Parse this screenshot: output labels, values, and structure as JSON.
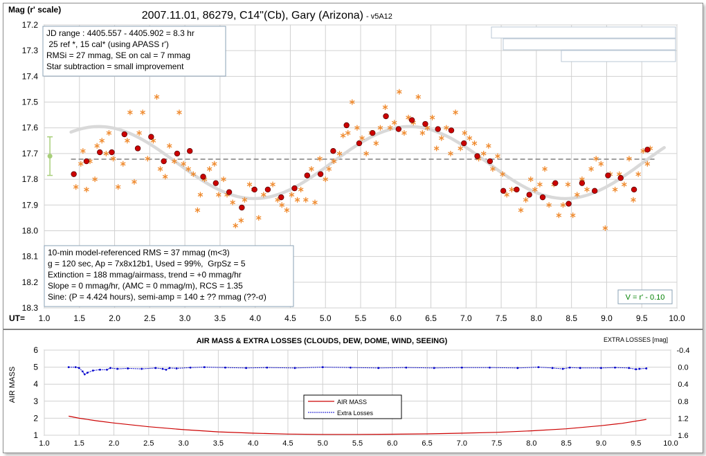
{
  "chart_data": [
    {
      "type": "scatter",
      "title": "2007.11.01, 86279, C14\"(Cb), Gary (Arizona)",
      "title_suffix": "- v5A12",
      "ylabel": "Mag (r' scale)",
      "xlabel": "UT=",
      "xlim": [
        1.0,
        10.0
      ],
      "ylim": [
        17.2,
        18.3
      ],
      "y_inverted": true,
      "grid": true,
      "x_ticks": [
        "1.0",
        "1.5",
        "2.0",
        "2.5",
        "3.0",
        "3.5",
        "4.0",
        "4.5",
        "5.0",
        "5.5",
        "6.0",
        "6.5",
        "7.0",
        "7.5",
        "8.0",
        "8.5",
        "9.0",
        "9.5",
        "10.0"
      ],
      "y_ticks": [
        "17.2",
        "17.3",
        "17.4",
        "17.5",
        "17.6",
        "17.7",
        "17.8",
        "17.9",
        "18.0",
        "18.1",
        "18.2",
        "18.3"
      ],
      "info_top": [
        "JD range : 4405.557 - 4405.902 = 8.3 hr",
        " 25 ref *, 15 cal* (using APASS r')",
        "RMSi = 27 mmag, SE on cal = 7 mmag",
        "Star subtraction = small improvement"
      ],
      "info_bottom": [
        "10-min model-referenced RMS = 37 mmag (m<3)",
        "g = 120 sec, Ap = 7x8x12b1, Used = 99%,  GrpSz = 5",
        "Extinction = 188 mmag/airmass, trend = +0 mmag/hr",
        "Slope = 0 mmag/hr, (AMC = 0 mmag/m), RCS = 1.35",
        "Sine: (P = 4.424 hours), semi-amp = 140 ± ?? mmag (??-σ)"
      ],
      "v_label": "V = r' - 0.10",
      "mean_mag": 17.722,
      "error_bar": {
        "x": 1.08,
        "y": 17.71,
        "low": 17.635,
        "high": 17.785
      },
      "model": {
        "mean": 17.735,
        "semi_amp": 0.14,
        "period_hr": 4.424,
        "phase_hr": 6.2
      },
      "binned": {
        "x": [
          1.42,
          1.6,
          1.79,
          1.96,
          2.14,
          2.33,
          2.52,
          2.7,
          2.89,
          3.07,
          3.26,
          3.44,
          3.63,
          3.81,
          3.99,
          4.18,
          4.37,
          4.56,
          4.74,
          4.93,
          5.11,
          5.3,
          5.48,
          5.67,
          5.86,
          6.04,
          6.23,
          6.42,
          6.6,
          6.79,
          6.97,
          7.16,
          7.34,
          7.53,
          7.72,
          7.9,
          8.09,
          8.27,
          8.46,
          8.65,
          8.83,
          9.02,
          9.2,
          9.39,
          9.58
        ],
        "y": [
          17.78,
          17.73,
          17.695,
          17.695,
          17.625,
          17.68,
          17.635,
          17.73,
          17.7,
          17.69,
          17.79,
          17.815,
          17.85,
          17.91,
          17.84,
          17.84,
          17.87,
          17.835,
          17.785,
          17.78,
          17.69,
          17.59,
          17.66,
          17.62,
          17.555,
          17.605,
          17.57,
          17.585,
          17.605,
          17.61,
          17.66,
          17.71,
          17.73,
          17.845,
          17.84,
          17.86,
          17.87,
          17.815,
          17.895,
          17.815,
          17.845,
          17.785,
          17.795,
          17.84,
          17.685
        ]
      },
      "points": {
        "x": [
          1.45,
          1.52,
          1.55,
          1.6,
          1.65,
          1.72,
          1.75,
          1.82,
          1.88,
          1.92,
          1.98,
          2.05,
          2.12,
          2.18,
          2.22,
          2.28,
          2.35,
          2.4,
          2.47,
          2.55,
          2.6,
          2.65,
          2.72,
          2.78,
          2.85,
          2.92,
          2.98,
          3.05,
          3.12,
          3.18,
          3.22,
          3.28,
          3.35,
          3.42,
          3.48,
          3.55,
          3.6,
          3.68,
          3.72,
          3.8,
          3.85,
          3.92,
          3.98,
          4.05,
          4.12,
          4.18,
          4.25,
          4.32,
          4.38,
          4.45,
          4.52,
          4.6,
          4.65,
          4.72,
          4.8,
          4.85,
          4.92,
          5.0,
          5.05,
          5.12,
          5.2,
          5.25,
          5.32,
          5.38,
          5.45,
          5.52,
          5.58,
          5.65,
          5.72,
          5.78,
          5.85,
          5.92,
          5.98,
          6.05,
          6.12,
          6.18,
          6.25,
          6.32,
          6.38,
          6.45,
          6.52,
          6.58,
          6.65,
          6.72,
          6.78,
          6.85,
          6.92,
          6.98,
          7.05,
          7.12,
          7.18,
          7.25,
          7.32,
          7.38,
          7.45,
          7.52,
          7.58,
          7.65,
          7.72,
          7.78,
          7.85,
          7.92,
          7.98,
          8.05,
          8.12,
          8.18,
          8.25,
          8.32,
          8.38,
          8.45,
          8.52,
          8.58,
          8.65,
          8.72,
          8.78,
          8.85,
          8.92,
          8.98,
          9.05,
          9.12,
          9.18,
          9.25,
          9.32,
          9.38,
          9.45,
          9.52,
          9.58,
          9.62
        ],
        "y": [
          17.83,
          17.74,
          17.69,
          17.84,
          17.73,
          17.8,
          17.67,
          17.65,
          17.7,
          17.62,
          17.72,
          17.83,
          17.74,
          17.65,
          17.54,
          17.81,
          17.62,
          17.54,
          17.72,
          17.65,
          17.48,
          17.76,
          17.79,
          17.67,
          17.73,
          17.54,
          17.74,
          17.76,
          17.78,
          17.92,
          17.86,
          17.8,
          17.76,
          17.74,
          17.86,
          17.8,
          17.86,
          17.89,
          17.98,
          17.96,
          17.88,
          17.82,
          17.84,
          17.95,
          17.86,
          17.84,
          17.82,
          17.88,
          17.9,
          17.92,
          17.86,
          17.88,
          17.84,
          17.88,
          17.76,
          17.89,
          17.72,
          17.8,
          17.76,
          17.73,
          17.7,
          17.63,
          17.62,
          17.5,
          17.6,
          17.64,
          17.7,
          17.62,
          17.66,
          17.6,
          17.52,
          17.6,
          17.58,
          17.46,
          17.62,
          17.56,
          17.58,
          17.48,
          17.62,
          17.6,
          17.56,
          17.68,
          17.64,
          17.6,
          17.7,
          17.54,
          17.68,
          17.62,
          17.64,
          17.66,
          17.72,
          17.7,
          17.67,
          17.76,
          17.71,
          17.78,
          17.86,
          17.84,
          17.84,
          17.92,
          17.88,
          17.8,
          17.84,
          17.82,
          17.76,
          17.9,
          17.82,
          17.94,
          17.9,
          17.82,
          17.94,
          17.86,
          17.8,
          17.84,
          17.76,
          17.72,
          17.74,
          17.99,
          17.78,
          17.84,
          17.78,
          17.82,
          17.72,
          17.88,
          17.78,
          17.69,
          17.74,
          17.68
        ],
        "count": 128
      }
    },
    {
      "type": "line",
      "title": "AIR MASS & EXTRA LOSSES (CLOUDS, DEW, DOME, WIND, SEEING)",
      "ylabel": "AIR MASS",
      "y2label": "EXTRA LOSSES [mag]",
      "xlim": [
        1.0,
        10.0
      ],
      "ylim": [
        1,
        6
      ],
      "y2lim": [
        -0.4,
        1.6
      ],
      "x_ticks": [
        "1.0",
        "1.5",
        "2.0",
        "2.5",
        "3.0",
        "3.5",
        "4.0",
        "4.5",
        "5.0",
        "5.5",
        "6.0",
        "6.5",
        "7.0",
        "7.5",
        "8.0",
        "8.5",
        "9.0",
        "9.5",
        "10.0"
      ],
      "y_ticks": [
        "1",
        "2",
        "3",
        "4",
        "5",
        "6"
      ],
      "y2_ticks": [
        "-0.4",
        "0.0",
        "0.4",
        "0.8",
        "1.2",
        "1.6"
      ],
      "series": [
        {
          "name": "AIR MASS",
          "color": "#cc0000",
          "x": [
            1.35,
            1.5,
            1.75,
            2.0,
            2.5,
            3.0,
            3.5,
            4.0,
            4.5,
            5.0,
            5.5,
            6.0,
            6.5,
            7.0,
            7.5,
            8.0,
            8.5,
            9.0,
            9.3,
            9.65
          ],
          "y": [
            2.12,
            2.0,
            1.85,
            1.72,
            1.5,
            1.33,
            1.2,
            1.12,
            1.07,
            1.05,
            1.05,
            1.06,
            1.08,
            1.12,
            1.17,
            1.26,
            1.38,
            1.56,
            1.7,
            1.93
          ]
        },
        {
          "name": "Extra Losses",
          "color": "#0000cc",
          "x": [
            1.35,
            1.45,
            1.5,
            1.55,
            1.58,
            1.62,
            1.7,
            1.8,
            1.9,
            1.95,
            2.05,
            2.2,
            2.4,
            2.6,
            2.7,
            2.75,
            2.8,
            2.9,
            3.1,
            3.3,
            3.6,
            3.9,
            4.2,
            4.6,
            5.0,
            5.4,
            5.8,
            6.2,
            6.6,
            7.0,
            7.4,
            7.8,
            8.1,
            8.3,
            8.45,
            8.55,
            8.7,
            9.0,
            9.2,
            9.4,
            9.5,
            9.55,
            9.65
          ],
          "y": [
            0.0,
            0.0,
            0.02,
            0.1,
            0.17,
            0.13,
            0.08,
            0.06,
            0.06,
            0.02,
            0.04,
            0.03,
            0.04,
            0.02,
            0.04,
            0.06,
            0.02,
            0.03,
            0.01,
            0.0,
            0.01,
            0.02,
            0.01,
            0.02,
            0.0,
            0.01,
            0.02,
            0.01,
            0.02,
            0.01,
            0.01,
            0.02,
            0.0,
            0.02,
            0.04,
            0.01,
            0.02,
            0.02,
            0.01,
            0.02,
            0.05,
            0.04,
            0.03
          ]
        }
      ]
    }
  ]
}
